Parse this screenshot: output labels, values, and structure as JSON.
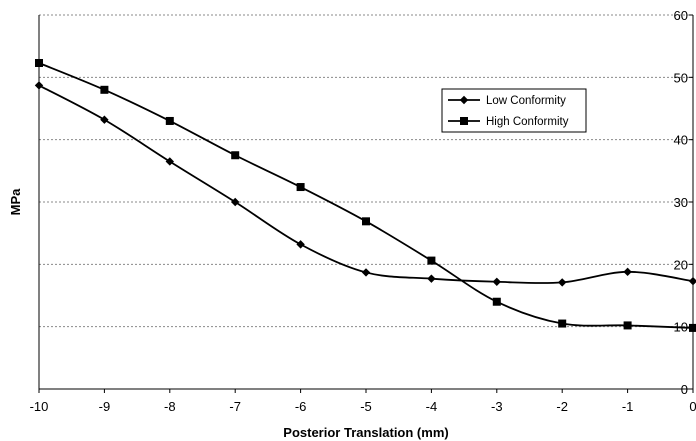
{
  "chart_data": {
    "type": "line",
    "title": "",
    "xlabel": "Posterior Translation (mm)",
    "ylabel": "MPa",
    "xlim": [
      -10,
      0
    ],
    "ylim": [
      0,
      60
    ],
    "x_ticks": [
      "-10",
      "-9",
      "-8",
      "-7",
      "-6",
      "-5",
      "-4",
      "-3",
      "-2",
      "-1",
      "0"
    ],
    "y_ticks": [
      "0",
      "10",
      "20",
      "30",
      "40",
      "50",
      "60"
    ],
    "y_axis_side": "right",
    "grid": true,
    "legend_position": "upper-right",
    "series": [
      {
        "name": "Low Conformity",
        "marker": "diamond",
        "x": [
          -10,
          -9,
          -8,
          -7,
          -6,
          -5,
          -4,
          -3,
          -2,
          -1,
          0
        ],
        "y": [
          48.7,
          43.2,
          36.5,
          30.0,
          23.2,
          18.7,
          17.7,
          17.2,
          17.1,
          18.8,
          17.3
        ]
      },
      {
        "name": "High Conformity",
        "marker": "square",
        "x": [
          -10,
          -9,
          -8,
          -7,
          -6,
          -5,
          -4,
          -3,
          -2,
          -1,
          0
        ],
        "y": [
          52.3,
          48.0,
          43.0,
          37.5,
          32.4,
          26.9,
          20.6,
          14.0,
          10.5,
          10.2,
          9.8
        ]
      }
    ]
  }
}
